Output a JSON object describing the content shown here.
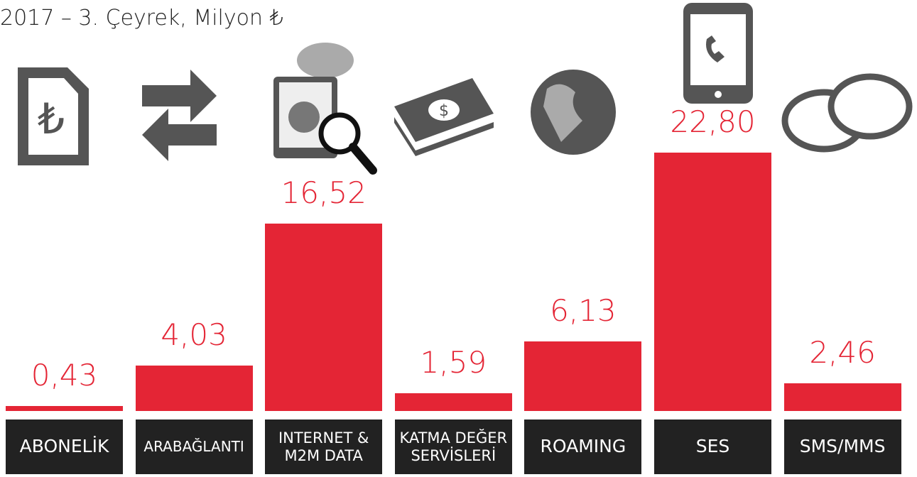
{
  "chart_data": {
    "type": "bar",
    "title": "2017 – 3. Çeyrek, Milyon ₺",
    "categories": [
      "ABONELİK",
      "ARABAĞLANTI",
      "INTERNET & M2M DATA",
      "KATMA DEĞER SERVİSLERİ",
      "ROAMING",
      "SES",
      "SMS/MMS"
    ],
    "values": [
      0.43,
      4.03,
      16.52,
      1.59,
      6.13,
      22.8,
      2.46
    ],
    "value_labels": [
      "0,43",
      "4,03",
      "16,52",
      "1,59",
      "6,13",
      "22,80",
      "2,46"
    ],
    "color": "#e42535"
  }
}
